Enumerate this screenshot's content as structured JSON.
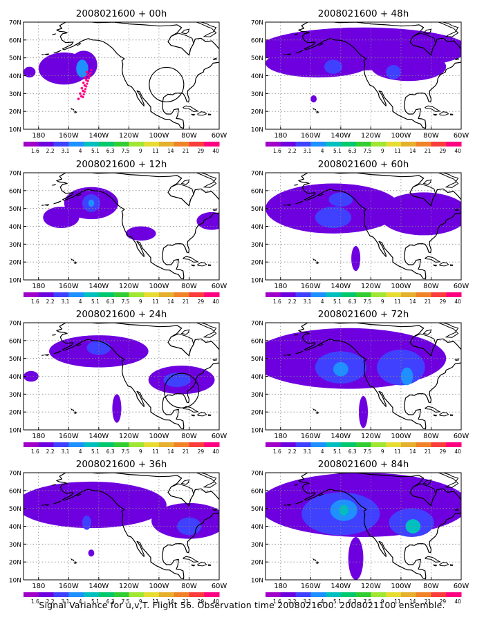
{
  "figure": {
    "caption": "Signal Variance for u,v,T. Flight 56. Observation time 2008021600. 2008021100 ensemble."
  },
  "axes": {
    "lat_labels": [
      "10N",
      "20N",
      "30N",
      "40N",
      "50N",
      "60N",
      "70N"
    ],
    "lon_labels": [
      "180",
      "160W",
      "140W",
      "120W",
      "100W",
      "80W",
      "60W"
    ],
    "lat_range": [
      10,
      70
    ],
    "lon_range": [
      -190,
      -60
    ],
    "grid": true
  },
  "colorbar": {
    "labels": [
      "1.6",
      "2.2",
      "3.1",
      "4",
      "5.1",
      "6.3",
      "7.5",
      "9",
      "11",
      "14",
      "21",
      "29",
      "40"
    ],
    "colors": [
      "#a000c8",
      "#6e00e0",
      "#4040ff",
      "#1e90ff",
      "#00bfbf",
      "#00c86e",
      "#32cd32",
      "#a0e632",
      "#e6dc32",
      "#e6af2d",
      "#f08228",
      "#fa3c3c",
      "#ff0080"
    ]
  },
  "panels": [
    {
      "id": "p00",
      "title": "2008021600 + 00h",
      "circle": {
        "lon": -95,
        "lat": 35
      },
      "track": true,
      "blobs": [
        {
          "lon": -163,
          "lat": 44,
          "rx": 17,
          "ry": 9,
          "level": 1
        },
        {
          "lon": -150,
          "lat": 46,
          "rx": 9,
          "ry": 8,
          "level": 1
        },
        {
          "lon": -151,
          "lat": 44,
          "rx": 4,
          "ry": 5,
          "level": 3
        },
        {
          "lon": -186,
          "lat": 42,
          "rx": 4,
          "ry": 3,
          "level": 1
        }
      ]
    },
    {
      "id": "p48",
      "title": "2008021600 + 48h",
      "blobs": [
        {
          "lon": -125,
          "lat": 55,
          "rx": 70,
          "ry": 12,
          "level": 1
        },
        {
          "lon": -155,
          "lat": 47,
          "rx": 35,
          "ry": 8,
          "level": 1
        },
        {
          "lon": -95,
          "lat": 45,
          "rx": 25,
          "ry": 8,
          "level": 1
        },
        {
          "lon": -145,
          "lat": 45,
          "rx": 6,
          "ry": 4,
          "level": 2
        },
        {
          "lon": -105,
          "lat": 42,
          "rx": 5,
          "ry": 4,
          "level": 2
        },
        {
          "lon": -158,
          "lat": 27,
          "rx": 2,
          "ry": 2,
          "level": 1
        }
      ]
    },
    {
      "id": "p12",
      "title": "2008021600 + 12h",
      "blobs": [
        {
          "lon": -145,
          "lat": 53,
          "rx": 18,
          "ry": 9,
          "level": 1
        },
        {
          "lon": -165,
          "lat": 45,
          "rx": 12,
          "ry": 6,
          "level": 1
        },
        {
          "lon": -145,
          "lat": 53,
          "rx": 6,
          "ry": 5,
          "level": 2
        },
        {
          "lon": -145,
          "lat": 53,
          "rx": 2,
          "ry": 2,
          "level": 3
        },
        {
          "lon": -112,
          "lat": 36,
          "rx": 10,
          "ry": 4,
          "level": 1
        },
        {
          "lon": -65,
          "lat": 43,
          "rx": 10,
          "ry": 5,
          "level": 1
        }
      ]
    },
    {
      "id": "p60",
      "title": "2008021600 + 60h",
      "blobs": [
        {
          "lon": -145,
          "lat": 50,
          "rx": 45,
          "ry": 14,
          "level": 1
        },
        {
          "lon": -85,
          "lat": 47,
          "rx": 30,
          "ry": 12,
          "level": 1
        },
        {
          "lon": -145,
          "lat": 45,
          "rx": 12,
          "ry": 6,
          "level": 2
        },
        {
          "lon": -140,
          "lat": 55,
          "rx": 8,
          "ry": 4,
          "level": 2
        },
        {
          "lon": -130,
          "lat": 22,
          "rx": 3,
          "ry": 7,
          "level": 1
        }
      ]
    },
    {
      "id": "p24",
      "title": "2008021600 + 24h",
      "circle": {
        "lon": -85,
        "lat": 32
      },
      "blobs": [
        {
          "lon": -140,
          "lat": 54,
          "rx": 33,
          "ry": 9,
          "level": 1
        },
        {
          "lon": -140,
          "lat": 56,
          "rx": 8,
          "ry": 4,
          "level": 2
        },
        {
          "lon": -85,
          "lat": 38,
          "rx": 22,
          "ry": 8,
          "level": 1
        },
        {
          "lon": -88,
          "lat": 38,
          "rx": 9,
          "ry": 4,
          "level": 2
        },
        {
          "lon": -185,
          "lat": 40,
          "rx": 5,
          "ry": 3,
          "level": 1
        },
        {
          "lon": -128,
          "lat": 22,
          "rx": 3,
          "ry": 8,
          "level": 1
        }
      ]
    },
    {
      "id": "p72",
      "title": "2008021600 + 72h",
      "blobs": [
        {
          "lon": -135,
          "lat": 50,
          "rx": 65,
          "ry": 17,
          "level": 1
        },
        {
          "lon": -140,
          "lat": 45,
          "rx": 17,
          "ry": 9,
          "level": 2
        },
        {
          "lon": -140,
          "lat": 44,
          "rx": 5,
          "ry": 4,
          "level": 3
        },
        {
          "lon": -100,
          "lat": 45,
          "rx": 16,
          "ry": 10,
          "level": 2
        },
        {
          "lon": -96,
          "lat": 40,
          "rx": 4,
          "ry": 5,
          "level": 3
        },
        {
          "lon": -125,
          "lat": 20,
          "rx": 3,
          "ry": 9,
          "level": 1
        }
      ]
    },
    {
      "id": "p36",
      "title": "2008021600 + 36h",
      "blobs": [
        {
          "lon": -145,
          "lat": 52,
          "rx": 50,
          "ry": 13,
          "level": 1
        },
        {
          "lon": -80,
          "lat": 43,
          "rx": 25,
          "ry": 10,
          "level": 1
        },
        {
          "lon": -148,
          "lat": 42,
          "rx": 3,
          "ry": 4,
          "level": 2
        },
        {
          "lon": -80,
          "lat": 40,
          "rx": 8,
          "ry": 5,
          "level": 2
        },
        {
          "lon": -145,
          "lat": 25,
          "rx": 2,
          "ry": 2,
          "level": 1
        }
      ]
    },
    {
      "id": "p84",
      "title": "2008021600 + 84h",
      "blobs": [
        {
          "lon": -125,
          "lat": 52,
          "rx": 70,
          "ry": 18,
          "level": 1
        },
        {
          "lon": -140,
          "lat": 47,
          "rx": 26,
          "ry": 12,
          "level": 2
        },
        {
          "lon": -138,
          "lat": 49,
          "rx": 9,
          "ry": 6,
          "level": 3
        },
        {
          "lon": -138,
          "lat": 49,
          "rx": 3,
          "ry": 3,
          "level": 4
        },
        {
          "lon": -93,
          "lat": 42,
          "rx": 15,
          "ry": 8,
          "level": 2
        },
        {
          "lon": -92,
          "lat": 40,
          "rx": 5,
          "ry": 4,
          "level": 4
        },
        {
          "lon": -130,
          "lat": 22,
          "rx": 5,
          "ry": 12,
          "level": 1
        }
      ]
    }
  ]
}
